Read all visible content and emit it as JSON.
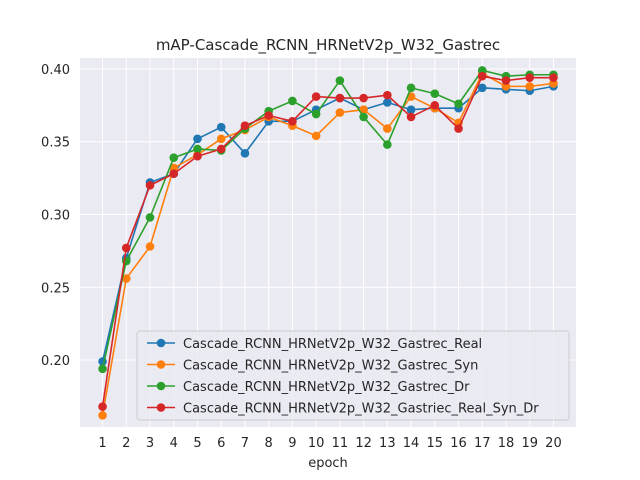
{
  "chart_data": {
    "type": "line",
    "title": "mAP-Cascade_RCNN_HRNetV2p_W32_Gastrec",
    "xlabel": "epoch",
    "ylabel": "",
    "x": [
      1,
      2,
      3,
      4,
      5,
      6,
      7,
      8,
      9,
      10,
      11,
      12,
      13,
      14,
      15,
      16,
      17,
      18,
      19,
      20
    ],
    "x_tick_labels": [
      "1",
      "2",
      "3",
      "4",
      "5",
      "6",
      "7",
      "8",
      "9",
      "10",
      "11",
      "12",
      "13",
      "14",
      "15",
      "16",
      "17",
      "18",
      "19",
      "20"
    ],
    "y_ticks": [
      0.2,
      0.25,
      0.3,
      0.35,
      0.4
    ],
    "y_tick_labels": [
      "0.20",
      "0.25",
      "0.30",
      "0.35",
      "0.40"
    ],
    "xlim": [
      0.05,
      20.95
    ],
    "ylim": [
      0.154,
      0.4075
    ],
    "grid": true,
    "legend_position": "lower-right",
    "series": [
      {
        "name": "Cascade_RCNN_HRNetV2p_W32_Gastrec_Real",
        "color": "#1f77b4",
        "values": [
          0.199,
          0.27,
          0.322,
          0.328,
          0.352,
          0.36,
          0.342,
          0.364,
          0.364,
          0.372,
          0.38,
          0.372,
          0.377,
          0.372,
          0.373,
          0.373,
          0.387,
          0.386,
          0.385,
          0.388
        ]
      },
      {
        "name": "Cascade_RCNN_HRNetV2p_W32_Gastrec_Syn",
        "color": "#ff7f0e",
        "values": [
          0.162,
          0.256,
          0.278,
          0.332,
          0.341,
          0.352,
          0.358,
          0.367,
          0.361,
          0.354,
          0.37,
          0.372,
          0.359,
          0.381,
          0.373,
          0.363,
          0.397,
          0.388,
          0.388,
          0.39
        ]
      },
      {
        "name": "Cascade_RCNN_HRNetV2p_W32_Gastrec_Dr",
        "color": "#2ca02c",
        "values": [
          0.194,
          0.268,
          0.298,
          0.339,
          0.345,
          0.344,
          0.359,
          0.371,
          0.378,
          0.369,
          0.392,
          0.367,
          0.348,
          0.387,
          0.383,
          0.376,
          0.399,
          0.395,
          0.396,
          0.396
        ]
      },
      {
        "name": "Cascade_RCNN_HRNetV2p_W32_Gastriec_Real_Syn_Dr",
        "color": "#d62728",
        "values": [
          0.168,
          0.277,
          0.32,
          0.328,
          0.34,
          0.345,
          0.361,
          0.368,
          0.364,
          0.381,
          0.38,
          0.38,
          0.382,
          0.367,
          0.375,
          0.359,
          0.395,
          0.392,
          0.394,
          0.394
        ]
      }
    ]
  }
}
